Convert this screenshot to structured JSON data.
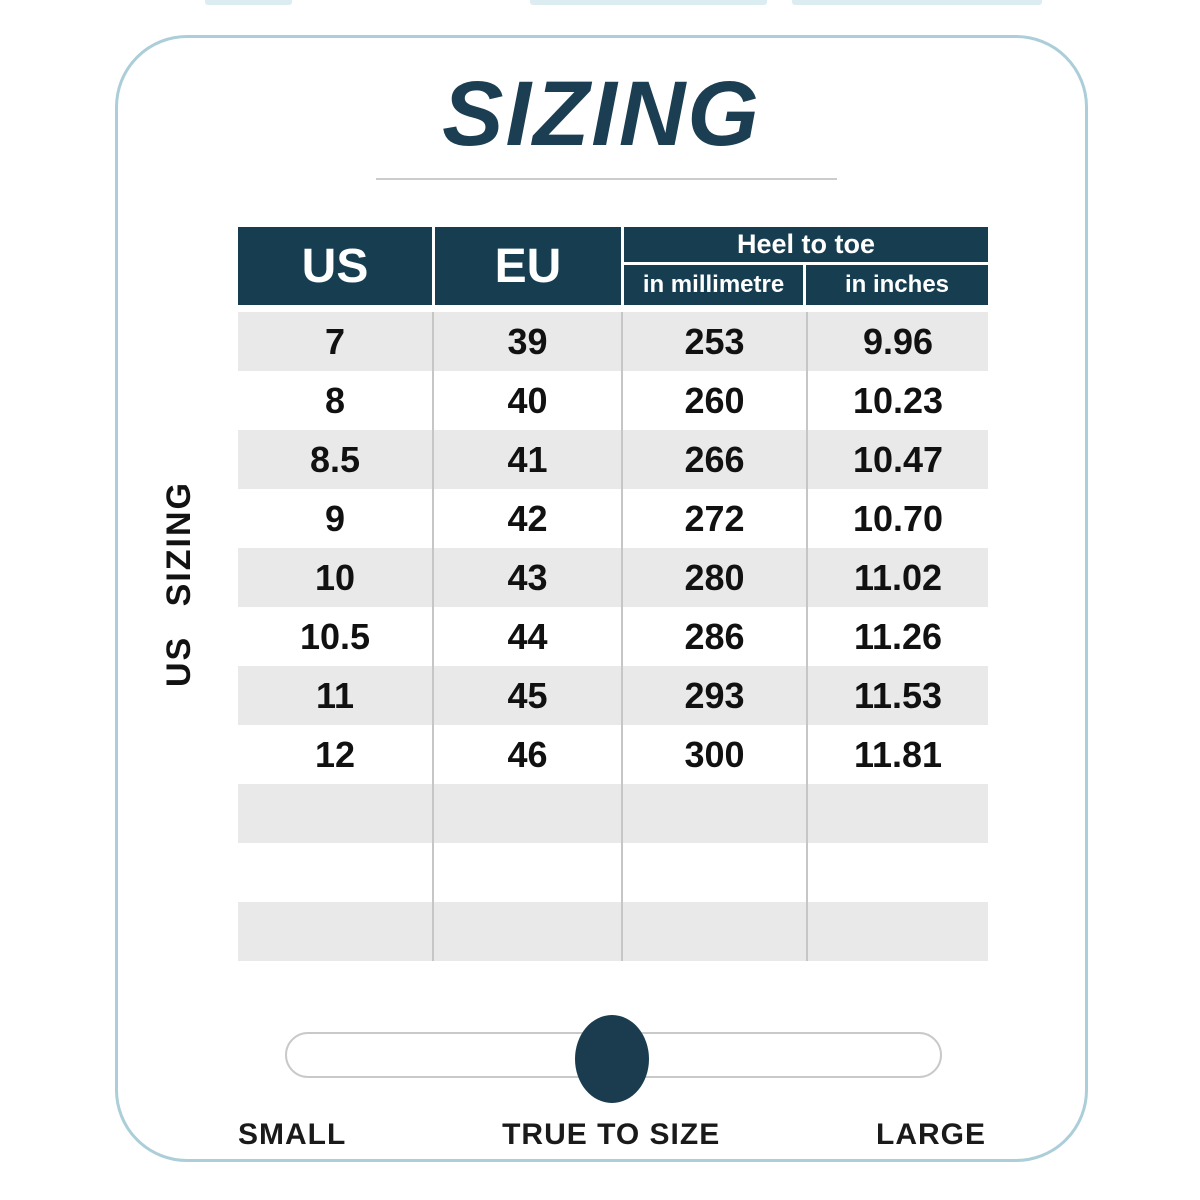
{
  "page": {
    "title": "SIZING",
    "side_label": "US SIZING"
  },
  "table": {
    "headers": {
      "us": "US",
      "eu": "EU",
      "heel_to_toe": "Heel to toe",
      "in_millimetre": "in millimetre",
      "in_inches": "in inches"
    },
    "rows": [
      {
        "us": "7",
        "eu": "39",
        "mm": "253",
        "inches": "9.96"
      },
      {
        "us": "8",
        "eu": "40",
        "mm": "260",
        "inches": "10.23"
      },
      {
        "us": "8.5",
        "eu": "41",
        "mm": "266",
        "inches": "10.47"
      },
      {
        "us": "9",
        "eu": "42",
        "mm": "272",
        "inches": "10.70"
      },
      {
        "us": "10",
        "eu": "43",
        "mm": "280",
        "inches": "11.02"
      },
      {
        "us": "10.5",
        "eu": "44",
        "mm": "286",
        "inches": "11.26"
      },
      {
        "us": "11",
        "eu": "45",
        "mm": "293",
        "inches": "11.53"
      },
      {
        "us": "12",
        "eu": "46",
        "mm": "300",
        "inches": "11.81"
      },
      {
        "us": "",
        "eu": "",
        "mm": "",
        "inches": ""
      },
      {
        "us": "",
        "eu": "",
        "mm": "",
        "inches": ""
      },
      {
        "us": "",
        "eu": "",
        "mm": "",
        "inches": ""
      }
    ]
  },
  "fit_slider": {
    "labels": {
      "small": "SMALL",
      "true_to_size": "TRUE TO SIZE",
      "large": "LARGE"
    },
    "selected": "TRUE TO SIZE",
    "position_percent": 50
  },
  "colors": {
    "dark_teal": "#173e50",
    "knob_teal": "#1b3c4e",
    "row_gray": "#e9e9e9",
    "divider_gray": "#c6c6c6",
    "card_border_blue": "#abced8",
    "underline_gray": "#cccccc"
  }
}
